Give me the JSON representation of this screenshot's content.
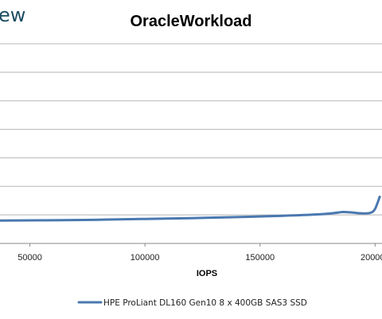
{
  "brand": {
    "text": "ew"
  },
  "chart_data": {
    "type": "line",
    "title": "OracleWorkload",
    "xlabel": "IOPS",
    "ylabel": "",
    "xlim": [
      37000,
      203000
    ],
    "ylim": [
      0,
      1.5
    ],
    "x_ticks": [
      50000,
      100000,
      150000,
      200000
    ],
    "x_tick_labels": [
      "50000",
      "100000",
      "150000",
      "200000"
    ],
    "grid": {
      "horizontal": true,
      "vertical": false
    },
    "legend": "bottom-center",
    "series": [
      {
        "name": "HPE ProLiant DL160 Gen10 8 x 400GB SAS3 SSD",
        "color": "#4a78b0",
        "x": [
          37000,
          60000,
          80000,
          100000,
          120000,
          140000,
          160000,
          175000,
          182000,
          186000,
          190000,
          194000,
          198000,
          200000,
          202000
        ],
        "y": [
          0.172,
          0.174,
          0.178,
          0.184,
          0.19,
          0.198,
          0.208,
          0.218,
          0.228,
          0.236,
          0.232,
          0.226,
          0.23,
          0.26,
          0.35
        ]
      }
    ]
  }
}
